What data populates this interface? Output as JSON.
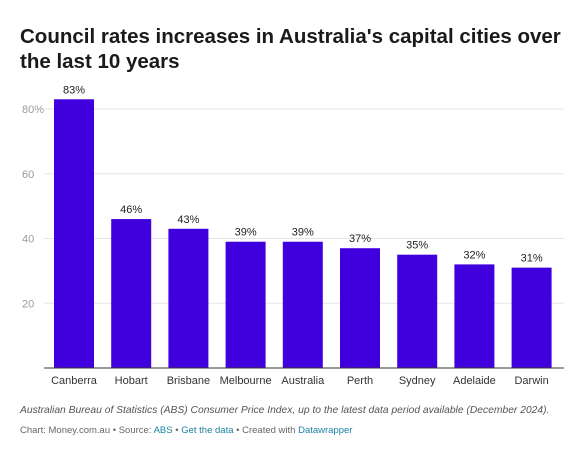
{
  "chart_data": {
    "type": "bar",
    "title": "Council rates increases in Australia's capital cities over the last 10 years",
    "categories": [
      "Canberra",
      "Hobart",
      "Brisbane",
      "Melbourne",
      "Australia",
      "Perth",
      "Sydney",
      "Adelaide",
      "Darwin"
    ],
    "values": [
      83,
      46,
      43,
      39,
      39,
      37,
      35,
      32,
      31
    ],
    "data_labels": [
      "83%",
      "46%",
      "43%",
      "39%",
      "39%",
      "37%",
      "35%",
      "32%",
      "31%"
    ],
    "y_ticks": [
      20,
      40,
      60,
      80
    ],
    "y_tick_labels": [
      "20",
      "40",
      "60",
      "80%"
    ],
    "ylim": [
      0,
      80
    ],
    "xlabel": "",
    "ylabel": "",
    "grid": true,
    "bar_color": "#4000dd"
  },
  "footer": {
    "note": "Australian Bureau of Statistics (ABS) Consumer Price Index, up to the latest data period available (December 2024).",
    "chart_prefix": "Chart: Money.com.au • Source: ",
    "source_link": "ABS",
    "separator": " • ",
    "data_link": "Get the data",
    "created_prefix": " • Created with ",
    "tool_link": "Datawrapper"
  }
}
